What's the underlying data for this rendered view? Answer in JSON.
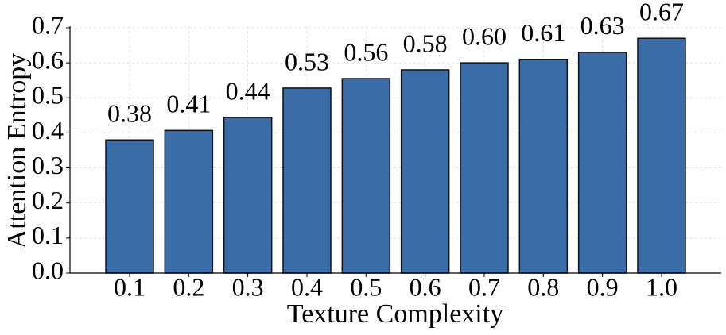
{
  "chart_data": {
    "type": "bar",
    "x_label": "Texture Complexity",
    "y_label": "Attention Entropy",
    "categories": [
      "0.1",
      "0.2",
      "0.3",
      "0.4",
      "0.5",
      "0.6",
      "0.7",
      "0.8",
      "0.9",
      "1.0"
    ],
    "values": [
      0.38,
      0.407,
      0.444,
      0.528,
      0.555,
      0.58,
      0.6,
      0.61,
      0.63,
      0.67
    ],
    "value_labels": [
      "0.38",
      "0.41",
      "0.44",
      "0.53",
      "0.56",
      "0.58",
      "0.60",
      "0.61",
      "0.63",
      "0.67"
    ],
    "color": "#3a6ca8",
    "edgecolor": "#111111",
    "ylim": [
      0,
      0.7
    ],
    "yticks": [
      {
        "value": 0,
        "label": "0.0"
      },
      0.1,
      0.2,
      0.3,
      0.4,
      0.5,
      0.6,
      0.7
    ],
    "grid": true
  }
}
